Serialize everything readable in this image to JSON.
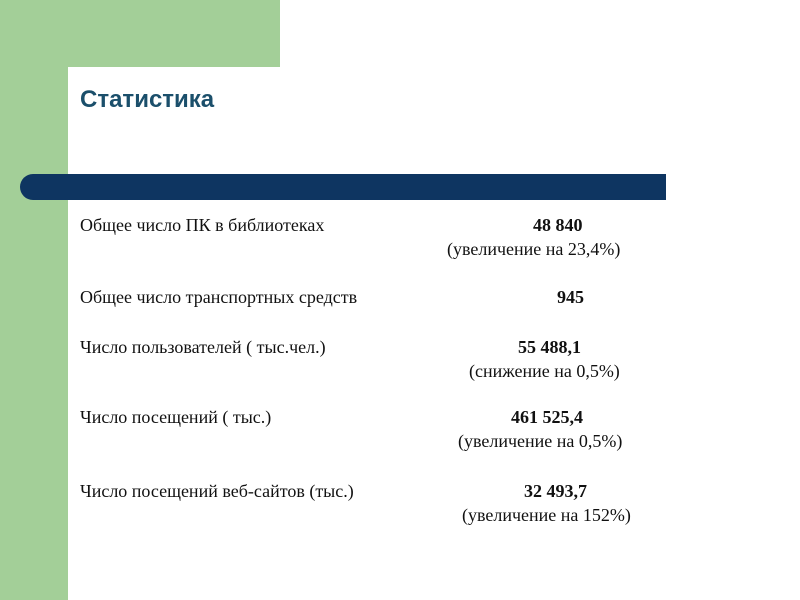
{
  "title": "Статистика",
  "rows": [
    {
      "label": "Общее число ПК в библиотеках",
      "value": "48 840",
      "note": "(увеличение на 23,4%)"
    },
    {
      "label": "Общее число транспортных средств",
      "value": "945",
      "note": ""
    },
    {
      "label": "Число пользователей ( тыс.чел.)",
      "value": "55 488,1",
      "note": "(снижение на 0,5%)"
    },
    {
      "label": "Число посещений  ( тыс.)",
      "value": "461 525,4",
      "note": "(увеличение на 0,5%)"
    },
    {
      "label": "Число посещений веб-сайтов (тыс.)",
      "value": "32 493,7",
      "note": "(увеличение на 152%)"
    }
  ],
  "colors": {
    "sidebar": "#a3cf98",
    "bar": "#0e3561",
    "title": "#1b4f6b"
  }
}
